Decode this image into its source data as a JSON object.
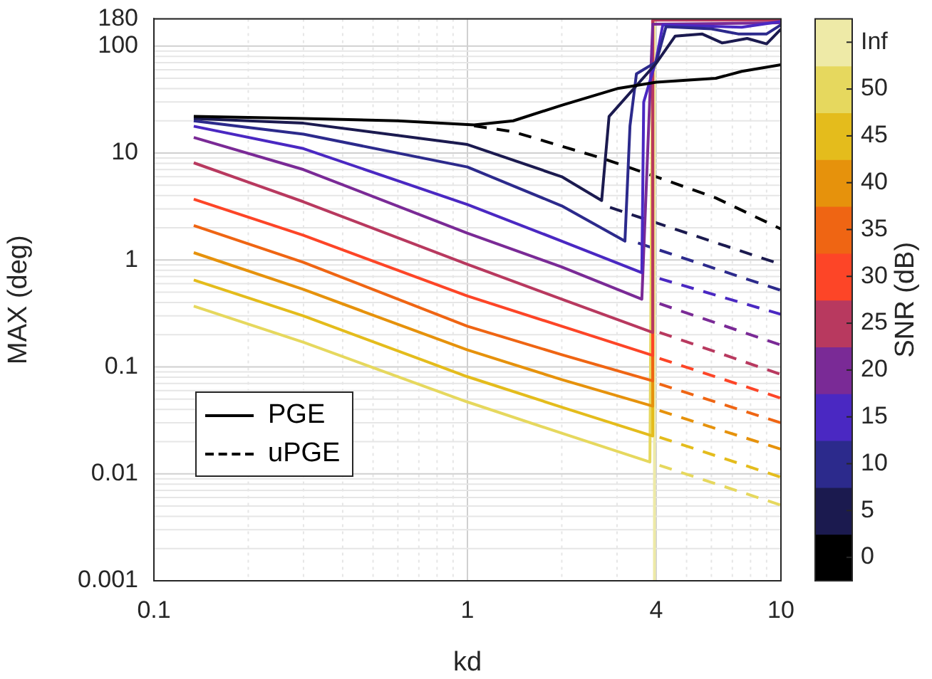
{
  "chart_data": {
    "type": "line",
    "xlabel": "kd",
    "ylabel": "MAX (deg)",
    "clabel": "SNR (dB)",
    "log": "xy",
    "xlim": [
      0.1,
      10
    ],
    "xticks": [
      0.1,
      1,
      4,
      10
    ],
    "ylim": [
      0.001,
      180
    ],
    "yticks": [
      0.001,
      0.01,
      0.1,
      1,
      10,
      100,
      180
    ],
    "clim": [
      -2.5,
      57.5
    ],
    "cticks": [
      0,
      5,
      10,
      15,
      20,
      25,
      30,
      35,
      40,
      45,
      50,
      {
        "value": 55,
        "label": "Inf"
      }
    ],
    "grid": true,
    "legend": "bottom left",
    "marker": "none",
    "series": [
      {
        "name": "PGE",
        "color": "#000000",
        "line_style": "solid",
        "x": [
          0.134,
          0.3,
          0.6,
          1.05,
          1.4,
          2,
          3,
          4,
          6.2,
          7.5,
          10
        ],
        "values": [
          22,
          21,
          20,
          18.3,
          20,
          28,
          40,
          46,
          50,
          58,
          67
        ]
      },
      {
        "color": "#1b1a4f",
        "line_style": "solid",
        "x": [
          0.134,
          0.3,
          1,
          2,
          2.68,
          2.83,
          4,
          4.6,
          5.6,
          6.5,
          7.8,
          9,
          10
        ],
        "values": [
          21,
          19,
          12,
          6.0,
          3.6,
          22,
          69,
          124,
          130,
          107,
          118,
          105,
          144
        ]
      },
      {
        "color": "#2c2a8c",
        "line_style": "solid",
        "x": [
          0.134,
          0.3,
          1,
          2,
          3.18,
          3.3,
          3.46,
          4,
          4.3,
          6,
          7.3,
          9,
          10
        ],
        "values": [
          20,
          15,
          7.4,
          3.2,
          1.5,
          18,
          55,
          71,
          152,
          145,
          130,
          130,
          158
        ]
      },
      {
        "color": "#4a28c2",
        "line_style": "solid",
        "x": [
          0.134,
          0.3,
          1,
          2,
          3.6,
          3.65,
          4,
          4.2,
          7.5,
          10
        ],
        "values": [
          17.8,
          11,
          3.3,
          1.5,
          0.76,
          30,
          74,
          158,
          150,
          170
        ]
      },
      {
        "color": "#7a2a96",
        "line_style": "solid",
        "x": [
          0.134,
          0.3,
          1,
          2,
          3.6,
          3.9,
          10
        ],
        "values": [
          14,
          7.0,
          1.78,
          0.86,
          0.43,
          160,
          165
        ]
      },
      {
        "color": "#b8395f",
        "line_style": "solid",
        "x": [
          0.134,
          0.3,
          1,
          2,
          3.9,
          3.9,
          10
        ],
        "values": [
          8.1,
          3.5,
          0.91,
          0.43,
          0.21,
          175,
          175
        ]
      },
      {
        "color": "#fd4527",
        "line_style": "solid",
        "x": [
          0.134,
          0.3,
          1,
          2,
          3.9,
          3.9
        ],
        "values": [
          3.7,
          1.7,
          0.46,
          0.24,
          0.128,
          175
        ]
      },
      {
        "color": "#ef6513",
        "line_style": "solid",
        "x": [
          0.134,
          0.3,
          1,
          2,
          3.9,
          3.9
        ],
        "values": [
          2.1,
          0.95,
          0.24,
          0.13,
          0.074,
          175
        ]
      },
      {
        "color": "#e6920c",
        "line_style": "solid",
        "x": [
          0.134,
          0.3,
          1,
          2,
          3.9,
          3.9
        ],
        "values": [
          1.17,
          0.53,
          0.144,
          0.076,
          0.043,
          175
        ]
      },
      {
        "color": "#e4bc1c",
        "line_style": "solid",
        "x": [
          0.134,
          0.3,
          1,
          2,
          3.9,
          3.9
        ],
        "values": [
          0.65,
          0.3,
          0.081,
          0.042,
          0.0226,
          175
        ]
      },
      {
        "color": "#e6d85e",
        "line_style": "solid",
        "x": [
          0.134,
          0.3,
          1,
          2,
          3.82,
          3.9
        ],
        "values": [
          0.37,
          0.17,
          0.047,
          0.024,
          0.0129,
          175
        ]
      },
      {
        "color": "#eeeaa7",
        "line_style": "solid",
        "x": [
          3.95,
          3.95
        ],
        "values": [
          0.001,
          180
        ]
      },
      {
        "name": "uPGE",
        "color": "#000000",
        "line_style": "dashed",
        "x": [
          1.05,
          1.4,
          2.7,
          4,
          6.2,
          10
        ],
        "values": [
          18,
          15.8,
          8.9,
          6.0,
          3.8,
          1.95
        ]
      },
      {
        "color": "#1b1a4f",
        "line_style": "dashed",
        "x": [
          2.85,
          10
        ],
        "values": [
          3.1,
          0.91
        ]
      },
      {
        "color": "#2c2a8c",
        "line_style": "dashed",
        "x": [
          3.5,
          10
        ],
        "values": [
          1.44,
          0.52
        ]
      },
      {
        "color": "#4a28c2",
        "line_style": "dashed",
        "x": [
          4.1,
          10
        ],
        "values": [
          0.67,
          0.31
        ]
      },
      {
        "color": "#7a2a96",
        "line_style": "dashed",
        "x": [
          4.1,
          10
        ],
        "values": [
          0.39,
          0.16
        ]
      },
      {
        "color": "#b8395f",
        "line_style": "dashed",
        "x": [
          4.1,
          10
        ],
        "values": [
          0.21,
          0.085
        ]
      },
      {
        "color": "#fd4527",
        "line_style": "dashed",
        "x": [
          4.1,
          10
        ],
        "values": [
          0.12,
          0.051
        ]
      },
      {
        "color": "#ef6513",
        "line_style": "dashed",
        "x": [
          4.1,
          10
        ],
        "values": [
          0.069,
          0.03
        ]
      },
      {
        "color": "#e6920c",
        "line_style": "dashed",
        "x": [
          4.1,
          10
        ],
        "values": [
          0.039,
          0.017
        ]
      },
      {
        "color": "#e4bc1c",
        "line_style": "dashed",
        "x": [
          4.1,
          10
        ],
        "values": [
          0.022,
          0.0093
        ]
      },
      {
        "color": "#e6d85e",
        "line_style": "dashed",
        "x": [
          4.1,
          10
        ],
        "values": [
          0.012,
          0.0051
        ]
      }
    ]
  }
}
